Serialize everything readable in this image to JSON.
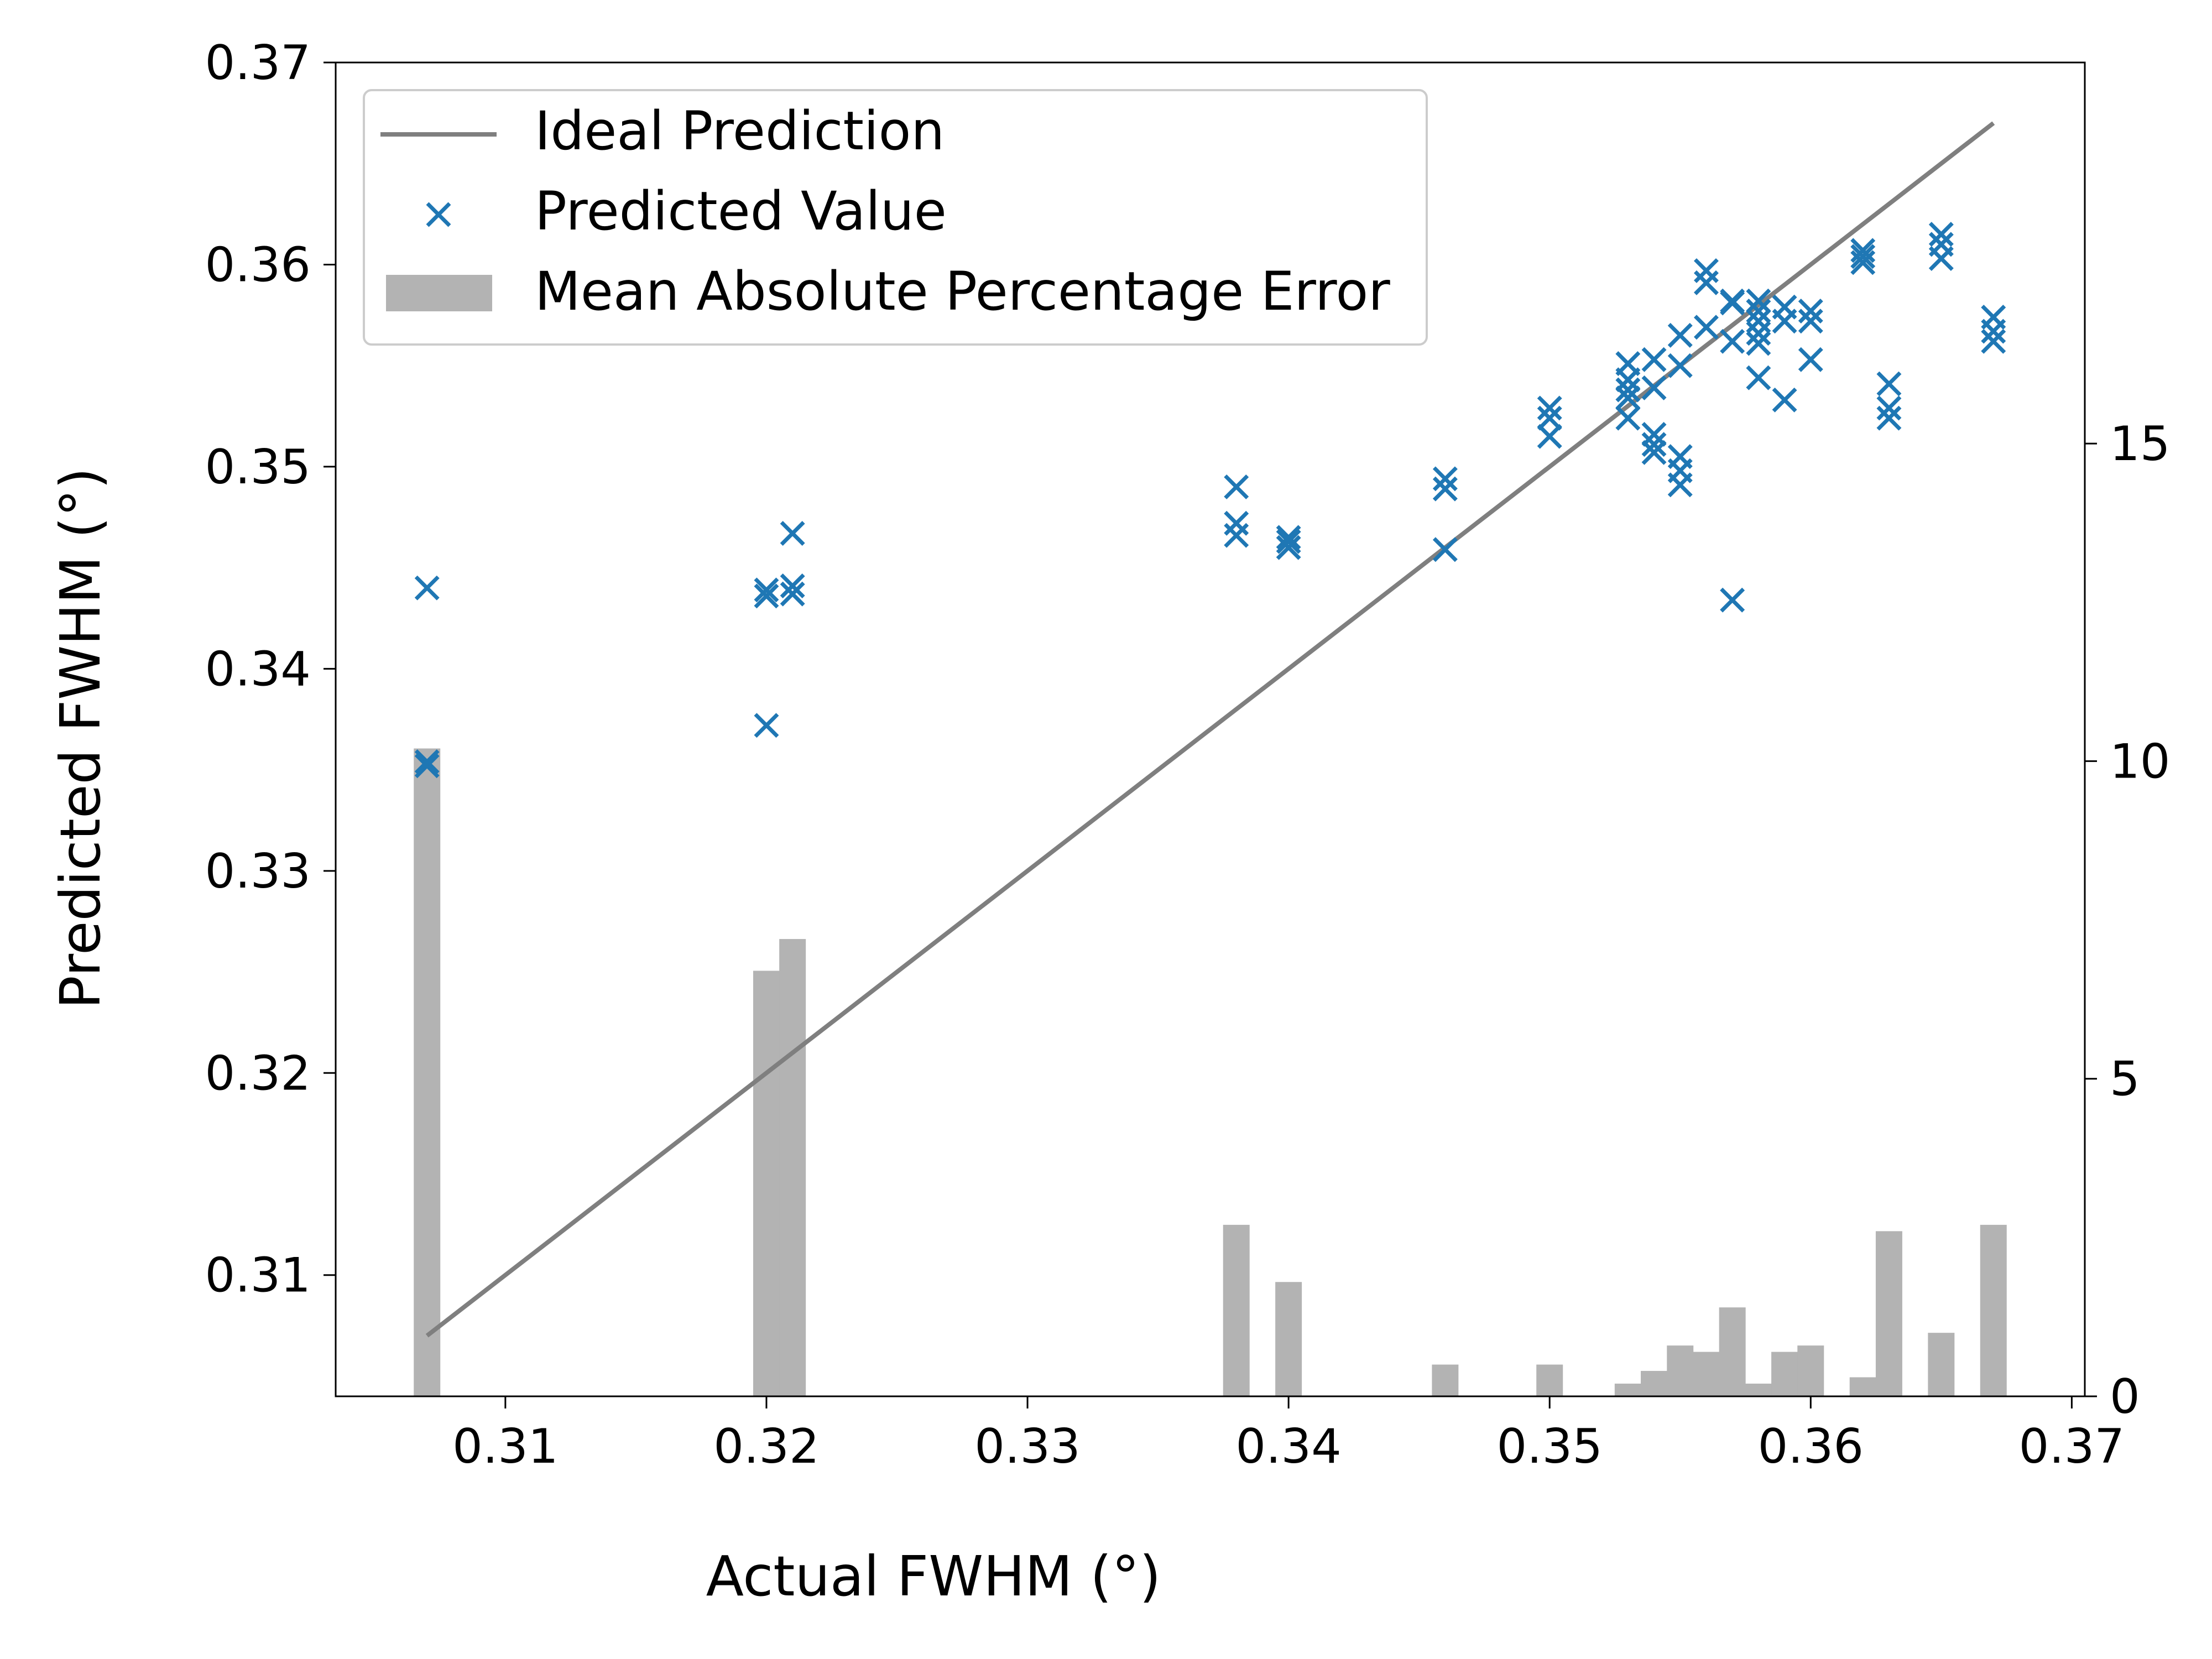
{
  "colors": {
    "ideal_line": "#7f7f7f",
    "predicted_marker": "#1f77b4",
    "error_bar": "#b3b3b3",
    "legend_border": "#cccccc"
  },
  "chart_data": {
    "type": "scatter",
    "xlabel": "Actual FWHM (°)",
    "ylabel": "Predicted FWHM (°)",
    "xlim": [
      0.3035,
      0.3705
    ],
    "ylim": [
      0.304,
      0.37
    ],
    "secondary_ylim": [
      0,
      21
    ],
    "x_ticks": [
      "0.31",
      "0.32",
      "0.33",
      "0.34",
      "0.35",
      "0.36",
      "0.37"
    ],
    "x_tick_values": [
      0.31,
      0.32,
      0.33,
      0.34,
      0.35,
      0.36,
      0.37
    ],
    "y_ticks": [
      "0.31",
      "0.32",
      "0.33",
      "0.34",
      "0.35",
      "0.36",
      "0.37"
    ],
    "y_tick_values": [
      0.31,
      0.32,
      0.33,
      0.34,
      0.35,
      0.36,
      0.37
    ],
    "secondary_y_ticks": [
      "0",
      "5",
      "10",
      "15"
    ],
    "secondary_y_tick_values": [
      0,
      5,
      10,
      15
    ],
    "grid": false,
    "legend_position": "top-left",
    "legend": [
      {
        "label": "Ideal Prediction",
        "kind": "line"
      },
      {
        "label": "Predicted Value",
        "kind": "marker"
      },
      {
        "label": "Mean Absolute Percentage Error",
        "kind": "patch"
      }
    ],
    "series": [
      {
        "name": "Ideal Prediction",
        "type": "line",
        "x": [
          0.307,
          0.367
        ],
        "y": [
          0.307,
          0.367
        ]
      },
      {
        "name": "Predicted Value",
        "type": "scatter",
        "x": [
          0.307,
          0.307,
          0.307,
          0.32,
          0.32,
          0.32,
          0.321,
          0.321,
          0.321,
          0.338,
          0.338,
          0.338,
          0.34,
          0.34,
          0.34,
          0.346,
          0.346,
          0.346,
          0.35,
          0.35,
          0.35,
          0.353,
          0.353,
          0.353,
          0.353,
          0.353,
          0.354,
          0.354,
          0.354,
          0.354,
          0.354,
          0.355,
          0.355,
          0.355,
          0.355,
          0.355,
          0.356,
          0.356,
          0.356,
          0.357,
          0.357,
          0.357,
          0.357,
          0.358,
          0.358,
          0.358,
          0.358,
          0.358,
          0.358,
          0.359,
          0.359,
          0.359,
          0.36,
          0.36,
          0.36,
          0.362,
          0.362,
          0.362,
          0.363,
          0.363,
          0.363,
          0.365,
          0.365,
          0.365,
          0.367,
          0.367,
          0.367
        ],
        "y": [
          0.344,
          0.3352,
          0.3354,
          0.3372,
          0.3436,
          0.3439,
          0.3467,
          0.3437,
          0.3441,
          0.349,
          0.3472,
          0.3466,
          0.3465,
          0.3463,
          0.346,
          0.3494,
          0.3489,
          0.3459,
          0.3529,
          0.3524,
          0.3515,
          0.3551,
          0.3543,
          0.3538,
          0.3534,
          0.3524,
          0.3553,
          0.3539,
          0.3516,
          0.3511,
          0.3507,
          0.3565,
          0.355,
          0.3505,
          0.3498,
          0.3491,
          0.3597,
          0.3591,
          0.3569,
          0.3581,
          0.3562,
          0.3434,
          0.3582,
          0.3582,
          0.3577,
          0.3572,
          0.3566,
          0.3561,
          0.3544,
          0.3579,
          0.3572,
          0.3533,
          0.3577,
          0.3572,
          0.3553,
          0.3607,
          0.3604,
          0.3601,
          0.3541,
          0.3529,
          0.3524,
          0.3615,
          0.361,
          0.3603,
          0.3574,
          0.3567,
          0.3562
        ]
      },
      {
        "name": "Mean Absolute Percentage Error",
        "type": "bar",
        "axis": "secondary",
        "x": [
          0.307,
          0.32,
          0.321,
          0.338,
          0.34,
          0.346,
          0.35,
          0.353,
          0.354,
          0.355,
          0.356,
          0.357,
          0.358,
          0.359,
          0.36,
          0.362,
          0.363,
          0.365,
          0.367
        ],
        "values": [
          10.2,
          6.7,
          7.2,
          2.7,
          1.8,
          0.5,
          0.5,
          0.2,
          0.4,
          0.8,
          0.7,
          1.4,
          0.2,
          0.7,
          0.8,
          0.3,
          2.6,
          1.0,
          2.7
        ]
      }
    ]
  }
}
